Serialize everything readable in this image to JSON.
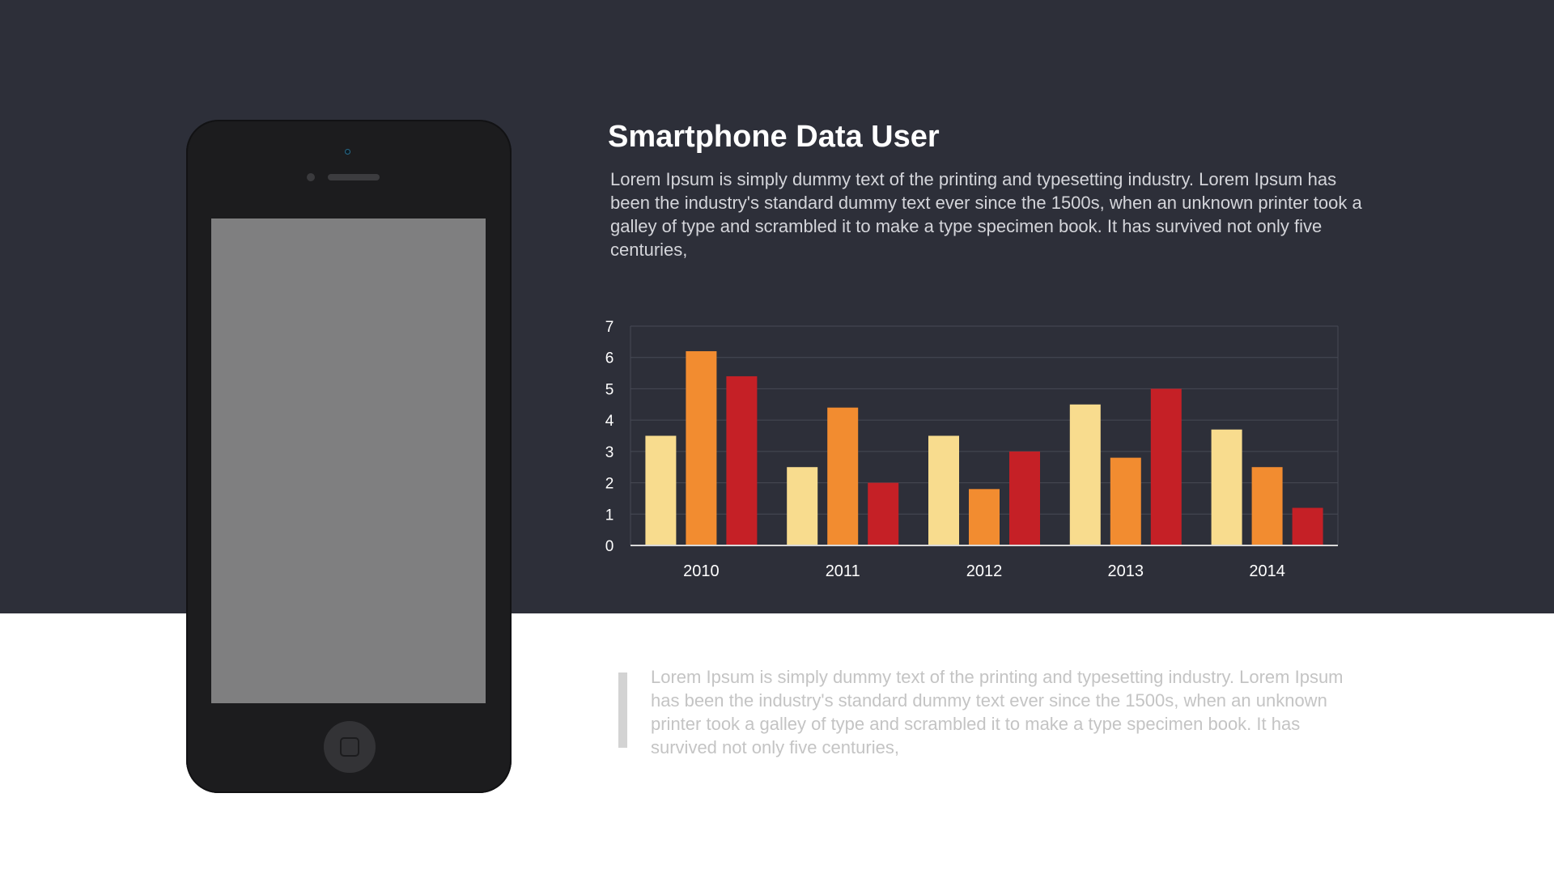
{
  "slide": {
    "title": "Smartphone Data User",
    "description_top": "Lorem Ipsum is simply dummy text of the printing and typesetting industry. Lorem Ipsum has been the industry's standard dummy text ever since the 1500s, when an unknown printer took a galley of type and scrambled it to make a type specimen book. It has survived not only five centuries,",
    "description_bottom": "Lorem Ipsum is simply dummy text of the printing and typesetting industry. Lorem Ipsum has been the industry's standard dummy text ever since the 1500s, when an unknown printer took a galley of type and scrambled it to make a type specimen book. It has survived not only five centuries,"
  },
  "colors": {
    "background_dark": "#2d2f39",
    "background_light": "#ffffff",
    "phone_body": "#1c1c1e",
    "phone_screen": "#7f7f80"
  },
  "chart_data": {
    "type": "bar",
    "title": "",
    "xlabel": "",
    "ylabel": "",
    "categories": [
      "2010",
      "2011",
      "2012",
      "2013",
      "2014"
    ],
    "series": [
      {
        "color": "#f8dc8e",
        "values": [
          3.5,
          2.5,
          3.5,
          4.5,
          3.7
        ]
      },
      {
        "color": "#f28c30",
        "values": [
          6.2,
          4.4,
          1.8,
          2.8,
          2.5
        ]
      },
      {
        "color": "#c52026",
        "values": [
          5.4,
          2.0,
          3.0,
          5.0,
          1.2
        ]
      }
    ],
    "ylim": [
      0,
      7
    ],
    "yticks": [
      "0",
      "1",
      "2",
      "3",
      "4",
      "5",
      "6",
      "7"
    ],
    "grid": true,
    "legend": "none"
  }
}
